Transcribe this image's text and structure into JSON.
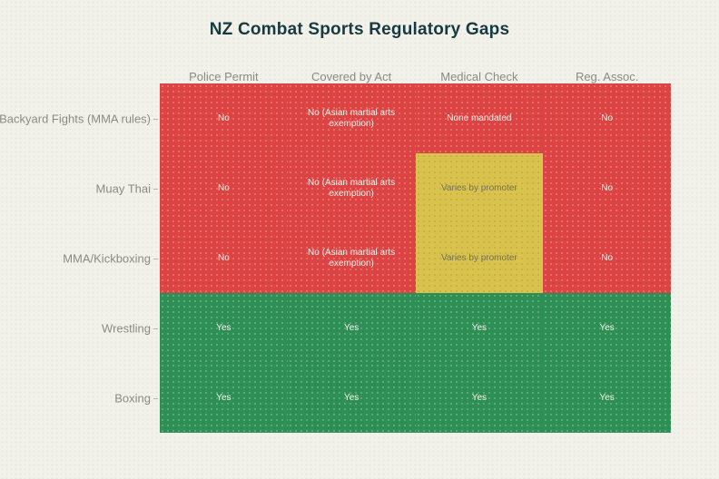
{
  "chart_data": {
    "type": "heatmap",
    "title": "NZ Combat Sports Regulatory Gaps",
    "columns": [
      "Police Permit",
      "Covered by Act",
      "Medical Check",
      "Reg. Assoc."
    ],
    "rows": [
      "Backyard Fights (MMA rules)",
      "Muay Thai",
      "MMA/Kickboxing",
      "Wrestling",
      "Boxing"
    ],
    "cells": [
      [
        {
          "label": "No",
          "status": "no"
        },
        {
          "label": "No (Asian martial arts exemption)",
          "status": "no"
        },
        {
          "label": "None mandated",
          "status": "no"
        },
        {
          "label": "No",
          "status": "no"
        }
      ],
      [
        {
          "label": "No",
          "status": "no"
        },
        {
          "label": "No (Asian martial arts exemption)",
          "status": "no"
        },
        {
          "label": "Varies by promoter",
          "status": "partial"
        },
        {
          "label": "No",
          "status": "no"
        }
      ],
      [
        {
          "label": "No",
          "status": "no"
        },
        {
          "label": "No (Asian martial arts exemption)",
          "status": "no"
        },
        {
          "label": "Varies by promoter",
          "status": "partial"
        },
        {
          "label": "No",
          "status": "no"
        }
      ],
      [
        {
          "label": "Yes",
          "status": "yes"
        },
        {
          "label": "Yes",
          "status": "yes"
        },
        {
          "label": "Yes",
          "status": "yes"
        },
        {
          "label": "Yes",
          "status": "yes"
        }
      ],
      [
        {
          "label": "Yes",
          "status": "yes"
        },
        {
          "label": "Yes",
          "status": "yes"
        },
        {
          "label": "Yes",
          "status": "yes"
        },
        {
          "label": "Yes",
          "status": "yes"
        }
      ]
    ],
    "status_colors": {
      "no": "#dc4343",
      "partial": "#d7c34d",
      "yes": "#2e8f55"
    },
    "status_text_colors": {
      "no": "#f6f2e9",
      "partial": "#72715f",
      "yes": "#f6f2e9"
    },
    "layout": {
      "background": "#f2f1ea",
      "title_color": "#173a40",
      "label_color": "#8b8a85",
      "legend": "none",
      "grid": "off"
    }
  }
}
